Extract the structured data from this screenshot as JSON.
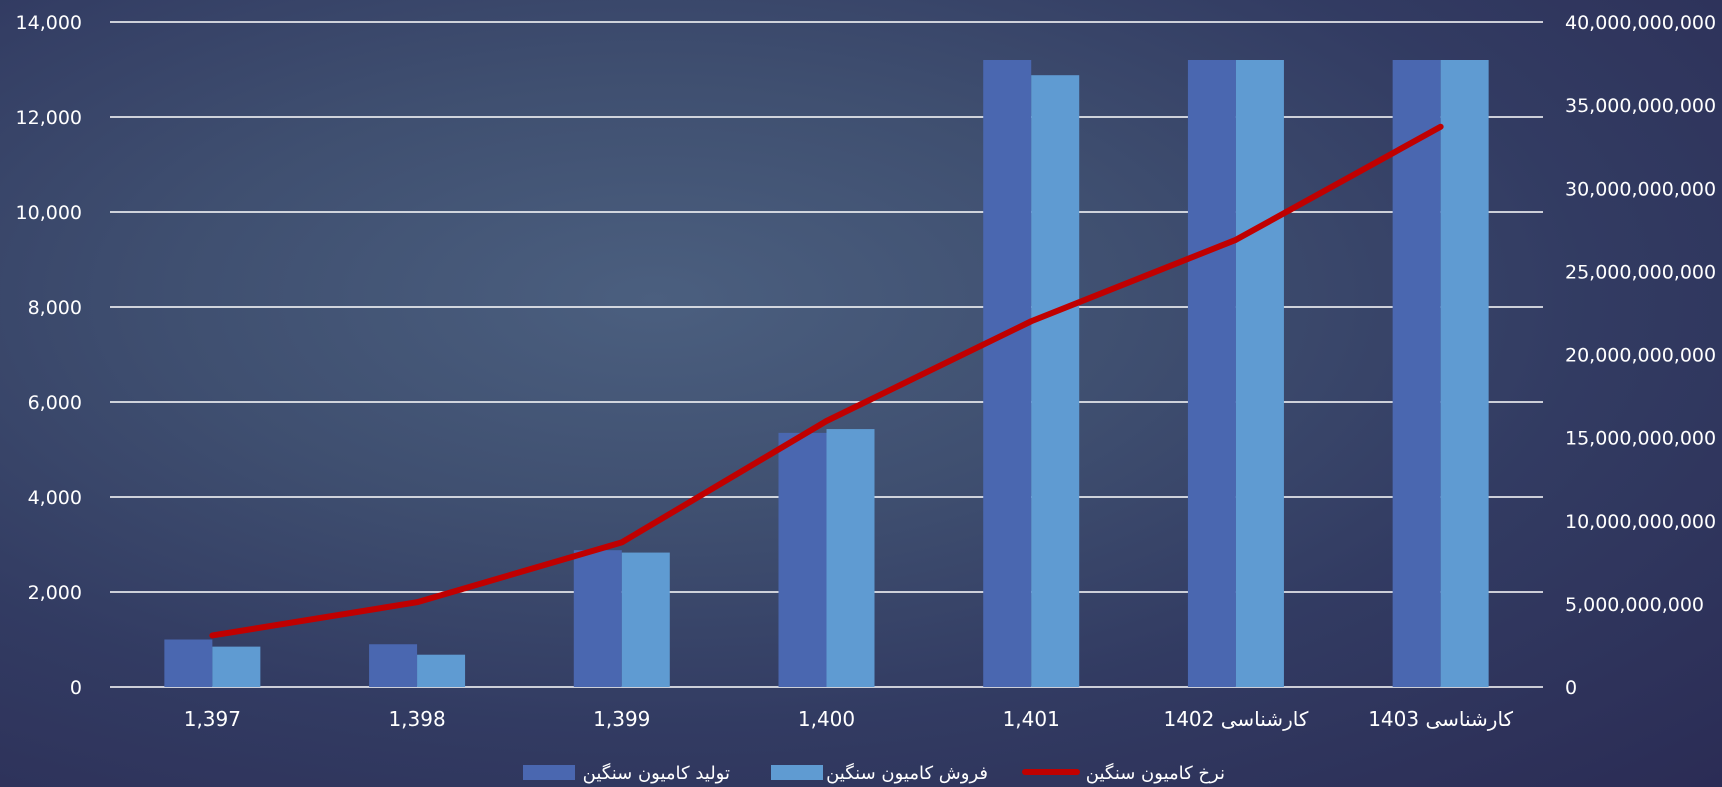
{
  "chart_data": {
    "type": "bar",
    "categories": [
      "1,397",
      "1,398",
      "1,399",
      "1,400",
      "1,401",
      "کارشناسی 1402",
      "کارشناسی 1403"
    ],
    "series": [
      {
        "name": "تولید کامیون سنگین",
        "type": "bar",
        "axis": "left",
        "color": "#4a67b0",
        "values": [
          1000,
          900,
          2880,
          5350,
          13200,
          13200,
          13200
        ]
      },
      {
        "name": "فروش کامیون سنگین",
        "type": "bar",
        "axis": "left",
        "color": "#5f9bd2",
        "values": [
          850,
          680,
          2830,
          5430,
          12880,
          13200,
          13200
        ]
      },
      {
        "name": "نرخ کامیون سنگین",
        "type": "line",
        "axis": "right",
        "color": "#c00000",
        "values": [
          3100000000,
          5100000000,
          8700000000,
          16000000000,
          22000000000,
          26900000000,
          33700000000
        ]
      }
    ],
    "ylim_left": [
      0,
      14000
    ],
    "yticks_left": [
      "0",
      "2,000",
      "4,000",
      "6,000",
      "8,000",
      "10,000",
      "12,000",
      "14,000"
    ],
    "ylim_right": [
      0,
      40000000000
    ],
    "yticks_right": [
      "0",
      "5,000,000,000",
      "10,000,000,000",
      "15,000,000,000",
      "20,000,000,000",
      "25,000,000,000",
      "30,000,000,000",
      "35,000,000,000",
      "40,000,000,000"
    ],
    "grid": true,
    "legend_position": "bottom",
    "title": "",
    "xlabel": "",
    "ylabel": ""
  }
}
